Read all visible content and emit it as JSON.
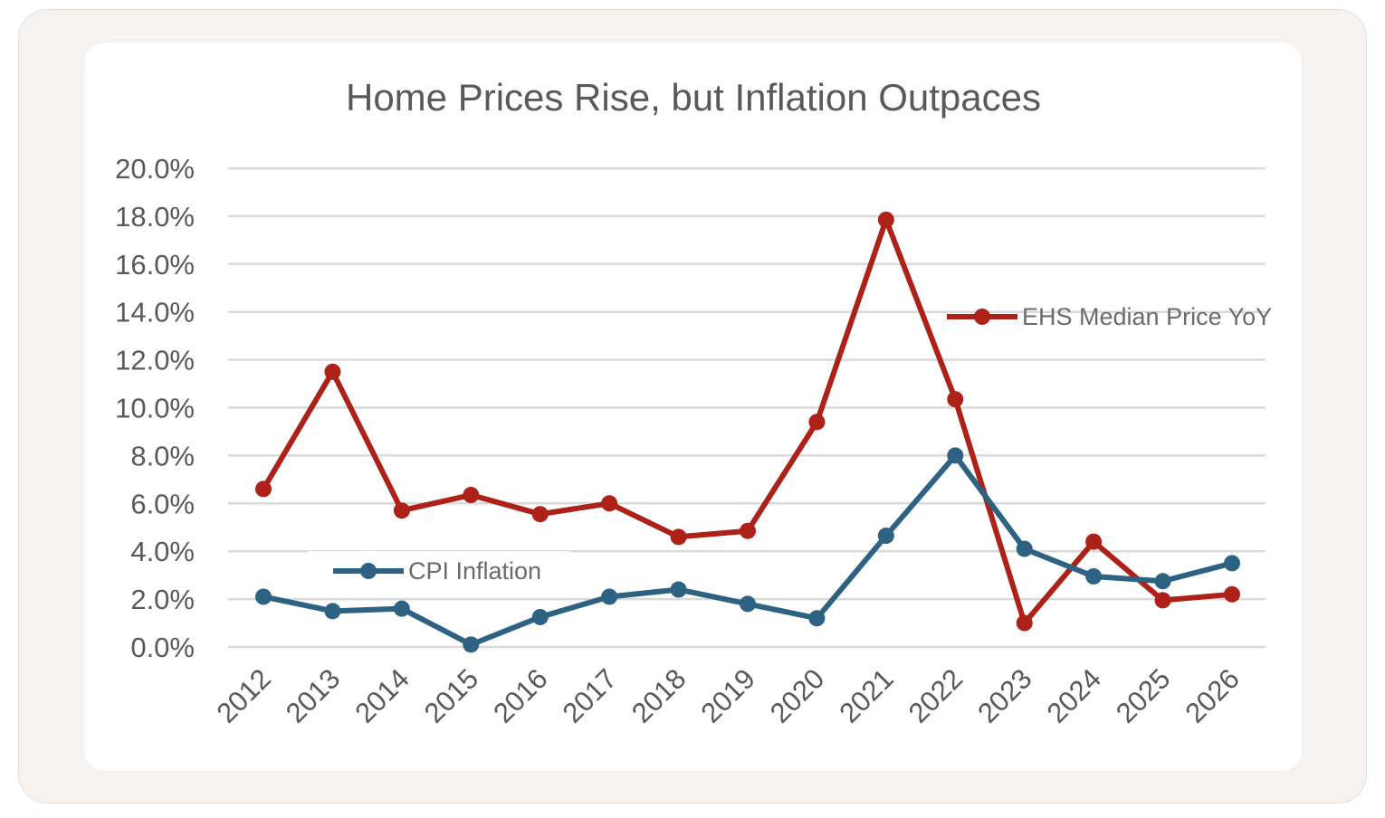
{
  "chart_data": {
    "type": "line",
    "title": "Home Prices Rise, but Inflation Outpaces",
    "xlabel": "",
    "ylabel": "",
    "categories": [
      "2012",
      "2013",
      "2014",
      "2015",
      "2016",
      "2017",
      "2018",
      "2019",
      "2020",
      "2021",
      "2022",
      "2023",
      "2024",
      "2025",
      "2026"
    ],
    "ylim": [
      0,
      20
    ],
    "yticks": [
      "0.0%",
      "2.0%",
      "4.0%",
      "6.0%",
      "8.0%",
      "10.0%",
      "12.0%",
      "14.0%",
      "16.0%",
      "18.0%",
      "20.0%"
    ],
    "grid": true,
    "series": [
      {
        "name": "EHS Median Price YoY",
        "color": "#ad2118",
        "values": [
          6.6,
          11.5,
          5.7,
          6.35,
          5.55,
          6.0,
          4.6,
          4.85,
          9.4,
          17.85,
          10.35,
          1.0,
          4.4,
          1.95,
          2.2
        ]
      },
      {
        "name": "CPI Inflation",
        "color": "#2e6283",
        "values": [
          2.1,
          1.5,
          1.6,
          0.1,
          1.25,
          2.1,
          2.4,
          1.8,
          1.2,
          4.65,
          8.0,
          4.1,
          2.95,
          2.75,
          3.5
        ]
      }
    ],
    "legend_placement": "inline labels"
  }
}
